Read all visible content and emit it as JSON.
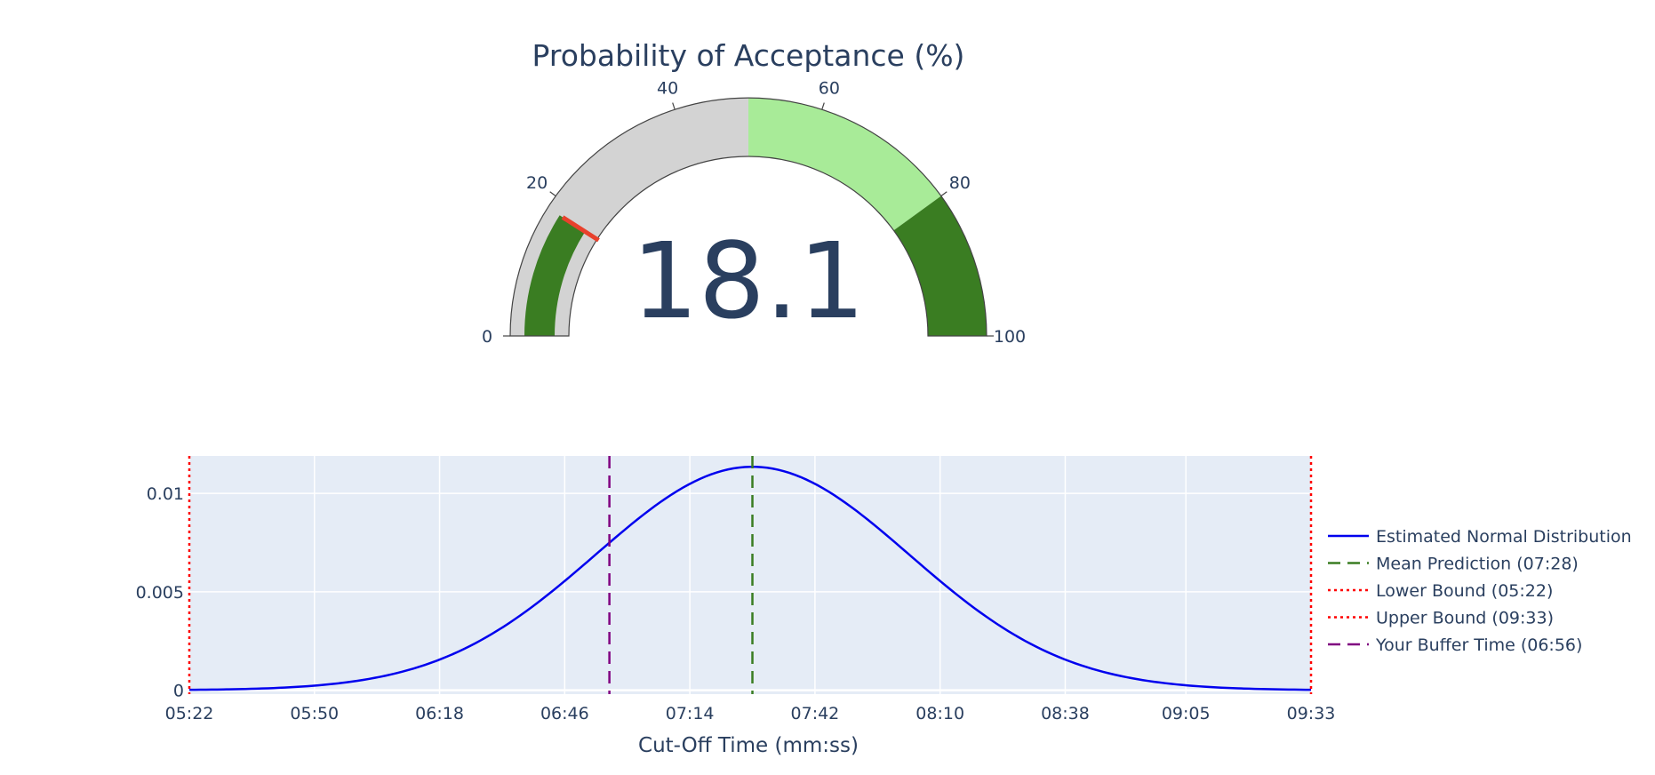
{
  "chart_data": [
    {
      "type": "gauge",
      "title": "Probability of Acceptance (%)",
      "value": 18.1,
      "value_label": "18.1",
      "range": [
        0,
        100
      ],
      "tick_values": [
        0,
        20,
        40,
        60,
        80,
        100
      ],
      "tick_labels": [
        "0",
        "20",
        "40",
        "60",
        "80",
        "100"
      ],
      "steps": [
        {
          "range": [
            0,
            50
          ],
          "color": "#d3d3d3"
        },
        {
          "range": [
            50,
            80
          ],
          "color": "#a8eb98"
        },
        {
          "range": [
            80,
            100
          ],
          "color": "#3a7d22"
        }
      ],
      "bar_color": "#3a7d22",
      "threshold": {
        "value": 18.1,
        "color": "#e8412c"
      }
    },
    {
      "type": "line",
      "xlabel": "Cut-Off Time (mm:ss)",
      "ylabel": "",
      "x_unit": "seconds",
      "xlim": [
        322,
        573
      ],
      "ylim": [
        -0.0002,
        0.0119
      ],
      "x_tick_values": [
        322,
        350,
        378,
        406,
        434,
        462,
        490,
        518,
        545,
        573
      ],
      "x_tick_labels": [
        "05:22",
        "05:50",
        "06:18",
        "06:46",
        "07:14",
        "07:42",
        "08:10",
        "08:38",
        "09:05",
        "09:33"
      ],
      "y_tick_values": [
        0,
        0.005,
        0.01
      ],
      "y_tick_labels": [
        "0",
        "0.005",
        "0.01"
      ],
      "grid": true,
      "legend_position": "right",
      "plot_background": "#e5ecf6",
      "normal_distribution": {
        "mean": 448,
        "sd": 35.1,
        "peak": 0.01135
      },
      "series": [
        {
          "name": "Estimated Normal Distribution",
          "color": "#0000ee",
          "dash": "solid"
        },
        {
          "name": "Mean Prediction (07:28)",
          "color": "#3a7d22",
          "dash": "dash",
          "x": 448
        },
        {
          "name": "Lower Bound (05:22)",
          "color": "#ff0000",
          "dash": "dot",
          "x": 322
        },
        {
          "name": "Upper Bound (09:33)",
          "color": "#ff0000",
          "dash": "dot",
          "x": 573
        },
        {
          "name": "Your Buffer Time (06:56)",
          "color": "#800080",
          "dash": "dash",
          "x": 416
        }
      ]
    }
  ]
}
